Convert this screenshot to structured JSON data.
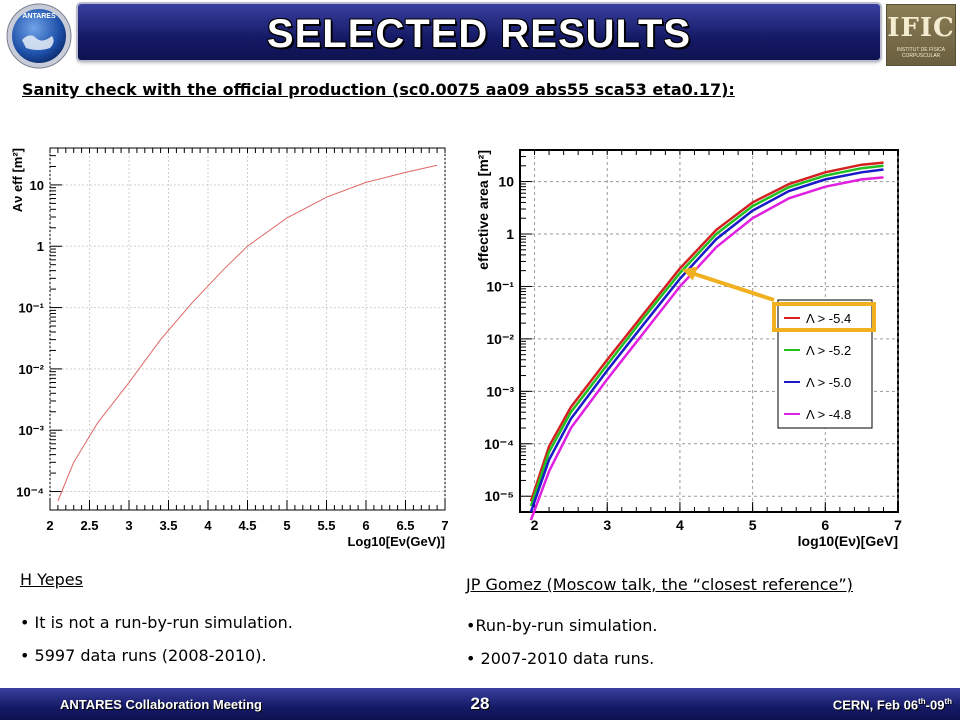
{
  "header": {
    "title": "SELECTED RESULTS",
    "logo_left_text": "ANTARES",
    "logo_right_text": "IFIC",
    "logo_right_small": "INSTITUT DE FÍSICA CORPUSCULAR"
  },
  "subtitle": "Sanity check with the official production (sc0.0075 aa09 abs55 sca53 eta0.17):",
  "chart_data": [
    {
      "type": "line",
      "xlabel": "Log10[Eν(GeV)]",
      "ylabel": "Aν eff [m²]",
      "xlim": [
        2,
        7
      ],
      "ylim": [
        5e-05,
        40
      ],
      "yscale": "log",
      "xticks": [
        "2",
        "2.5",
        "3",
        "3.5",
        "4",
        "4.5",
        "5",
        "5.5",
        "6",
        "6.5",
        "7"
      ],
      "yticks": [
        "10⁻⁴",
        "10⁻³",
        "10⁻²",
        "10⁻¹",
        "1",
        "10"
      ],
      "grid": true,
      "series": [
        {
          "color": "#e06666",
          "x": [
            2.1,
            2.3,
            2.6,
            3.0,
            3.4,
            3.8,
            4.2,
            4.5,
            5.0,
            5.5,
            6.0,
            6.5,
            6.9
          ],
          "y": [
            7e-05,
            0.0003,
            0.0013,
            0.006,
            0.03,
            0.12,
            0.42,
            1.0,
            2.9,
            6.3,
            11,
            16,
            21
          ]
        }
      ]
    },
    {
      "type": "line",
      "xlabel": "log10(Eν)[GeV]",
      "ylabel": "effective area [m²]",
      "xlim": [
        1.8,
        7
      ],
      "ylim": [
        5e-06,
        40
      ],
      "yscale": "log",
      "xticks": [
        "2",
        "3",
        "4",
        "5",
        "6",
        "7"
      ],
      "yticks": [
        "10⁻⁵",
        "10⁻⁴",
        "10⁻³",
        "10⁻²",
        "10⁻¹",
        "1",
        "10"
      ],
      "grid": true,
      "legend_position": "right",
      "highlighted_series": "Λ > -5.4",
      "series": [
        {
          "name": "Λ > -5.4",
          "color": "#d42020",
          "x": [
            1.95,
            2.2,
            2.5,
            3.0,
            3.5,
            4.0,
            4.5,
            5.0,
            5.5,
            6.0,
            6.5,
            6.8
          ],
          "y": [
            8e-06,
            9e-05,
            0.0005,
            0.004,
            0.03,
            0.22,
            1.2,
            4.0,
            9.0,
            15,
            21,
            23
          ]
        },
        {
          "name": "Λ > -5.2",
          "color": "#20c020",
          "x": [
            1.95,
            2.2,
            2.5,
            3.0,
            3.5,
            4.0,
            4.5,
            5.0,
            5.5,
            6.0,
            6.5,
            6.8
          ],
          "y": [
            6.5e-06,
            7e-05,
            0.0004,
            0.0032,
            0.025,
            0.18,
            1.0,
            3.4,
            7.8,
            13,
            18,
            20
          ]
        },
        {
          "name": "Λ > -5.0",
          "color": "#1a1ac8",
          "x": [
            1.95,
            2.2,
            2.5,
            3.0,
            3.5,
            4.0,
            4.5,
            5.0,
            5.5,
            6.0,
            6.5,
            6.8
          ],
          "y": [
            5e-06,
            5e-05,
            0.0003,
            0.0025,
            0.019,
            0.14,
            0.8,
            2.8,
            6.6,
            11,
            15,
            17
          ]
        },
        {
          "name": "Λ > -4.8",
          "color": "#e020e0",
          "x": [
            1.95,
            2.2,
            2.5,
            3.0,
            3.5,
            4.0,
            4.5,
            5.0,
            5.5,
            6.0,
            6.5,
            6.8
          ],
          "y": [
            3.5e-06,
            3e-05,
            0.0002,
            0.0017,
            0.013,
            0.1,
            0.56,
            2.0,
            4.8,
            8.0,
            11,
            12
          ]
        }
      ]
    }
  ],
  "notes_left": {
    "heading": "H Yepes",
    "bullets": [
      "It is not a run-by-run simulation.",
      "5997 data runs (2008-2010)."
    ]
  },
  "notes_right": {
    "heading": "JP Gomez (Moscow talk, the “closest reference”)",
    "bullets": [
      "Run-by-run simulation.",
      "2007-2010 data runs."
    ]
  },
  "footer": {
    "left": "ANTARES Collaboration Meeting",
    "page": "28",
    "right_prefix": "CERN, Feb 06",
    "right_sup1": "th",
    "right_mid": "-09",
    "right_sup2": "th"
  },
  "colors": {
    "title_bar": "#151a66",
    "highlight_box": "#f0b020",
    "arrow": "#f0b020"
  }
}
